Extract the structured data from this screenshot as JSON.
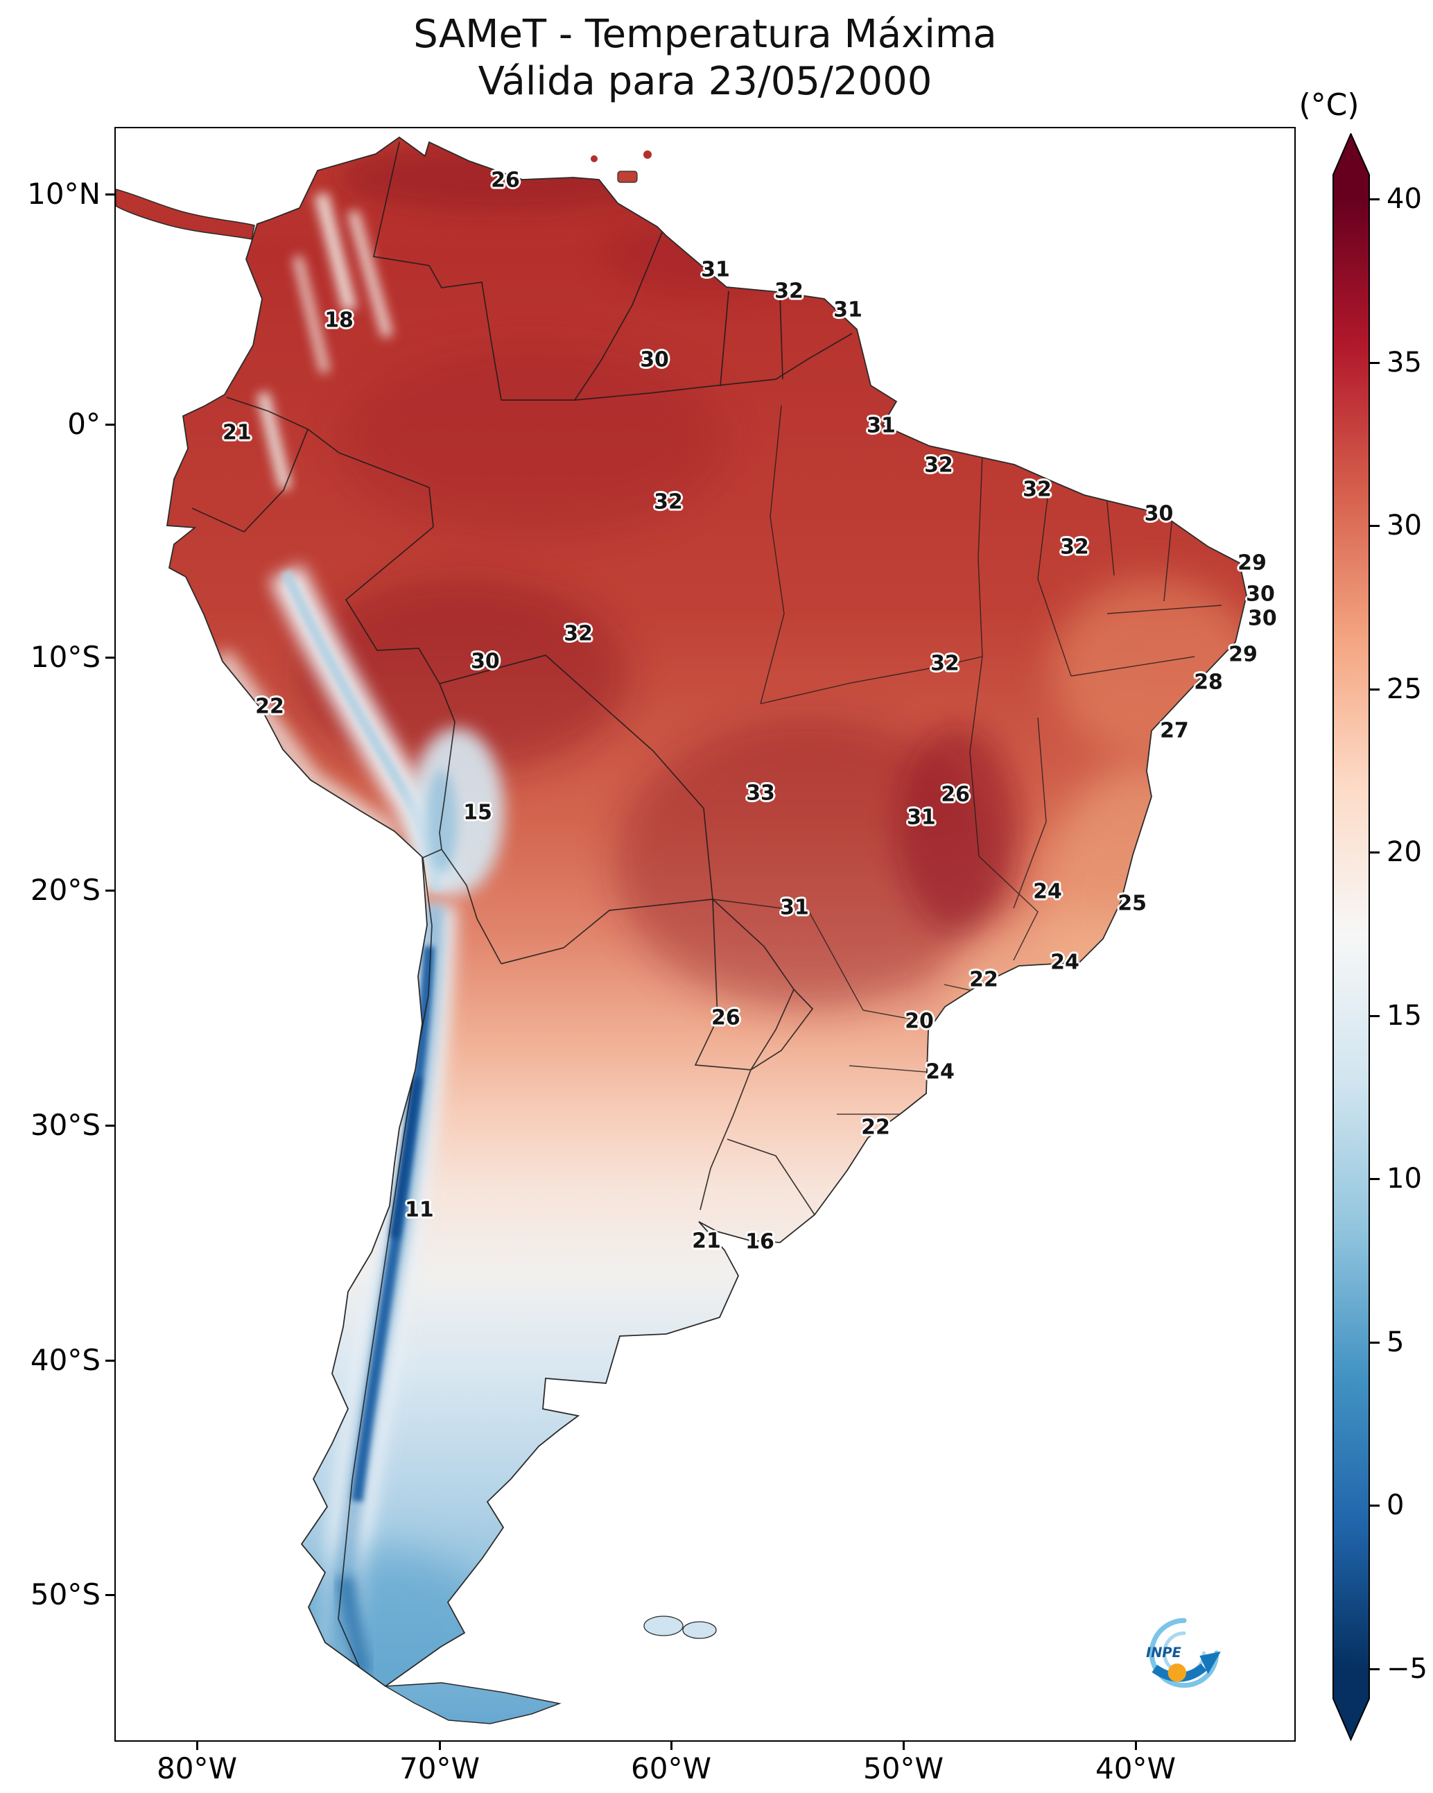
{
  "title": {
    "line1": "SAMeT - Temperatura Máxima",
    "line2": "Válida para 23/05/2000"
  },
  "colorbar": {
    "unit_label": "(°C)",
    "ticks": [
      40,
      35,
      30,
      25,
      20,
      15,
      10,
      5,
      0,
      -5
    ],
    "colormap_colors": [
      "#67001f",
      "#b2182b",
      "#d6604d",
      "#f4a582",
      "#fddbc7",
      "#f7f7f7",
      "#d1e5f0",
      "#92c5de",
      "#4393c3",
      "#2166ac",
      "#053061"
    ]
  },
  "axes": {
    "lat_ticks": [
      "10°N",
      "0°",
      "10°S",
      "20°S",
      "30°S",
      "40°S",
      "50°S"
    ],
    "lon_ticks": [
      "80°W",
      "70°W",
      "60°W",
      "50°W",
      "40°W"
    ]
  },
  "logo": {
    "text": "INPE"
  },
  "chart_data": {
    "type": "heatmap",
    "title": "SAMeT - Temperatura Máxima",
    "subtitle": "Válida para 23/05/2000",
    "variable": "Temperatura Máxima",
    "valid_date": "23/05/2000",
    "units": "°C",
    "region": "South America",
    "colormap": "RdBu_r (blue-white-red)",
    "colorbar_range": [
      -5,
      40
    ],
    "colorbar_ticks": [
      40,
      35,
      30,
      25,
      20,
      15,
      10,
      5,
      0,
      -5
    ],
    "x_axis_ticks": [
      "80°W",
      "70°W",
      "60°W",
      "50°W",
      "40°W"
    ],
    "y_axis_ticks": [
      "10°N",
      "0°",
      "10°S",
      "20°S",
      "30°S",
      "40°S",
      "50°S"
    ],
    "station_values": [
      {
        "value": 26,
        "x_pct": 33.06,
        "y_pct": 3.23
      },
      {
        "value": 31,
        "x_pct": 50.88,
        "y_pct": 8.77
      },
      {
        "value": 32,
        "x_pct": 57.12,
        "y_pct": 10.11
      },
      {
        "value": 31,
        "x_pct": 62.12,
        "y_pct": 11.27
      },
      {
        "value": 18,
        "x_pct": 18.94,
        "y_pct": 11.91
      },
      {
        "value": 30,
        "x_pct": 45.71,
        "y_pct": 14.37
      },
      {
        "value": 21,
        "x_pct": 10.29,
        "y_pct": 18.88
      },
      {
        "value": 31,
        "x_pct": 64.94,
        "y_pct": 18.45
      },
      {
        "value": 32,
        "x_pct": 69.82,
        "y_pct": 20.9
      },
      {
        "value": 32,
        "x_pct": 78.18,
        "y_pct": 22.41
      },
      {
        "value": 32,
        "x_pct": 46.88,
        "y_pct": 23.18
      },
      {
        "value": 30,
        "x_pct": 88.5,
        "y_pct": 23.91
      },
      {
        "value": 32,
        "x_pct": 81.35,
        "y_pct": 25.98
      },
      {
        "value": 29,
        "x_pct": 96.41,
        "y_pct": 26.97
      },
      {
        "value": 30,
        "x_pct": 97.12,
        "y_pct": 28.9
      },
      {
        "value": 30,
        "x_pct": 97.29,
        "y_pct": 30.41
      },
      {
        "value": 32,
        "x_pct": 39.24,
        "y_pct": 31.35
      },
      {
        "value": 30,
        "x_pct": 31.35,
        "y_pct": 33.08
      },
      {
        "value": 32,
        "x_pct": 70.35,
        "y_pct": 33.2
      },
      {
        "value": 29,
        "x_pct": 95.65,
        "y_pct": 32.65
      },
      {
        "value": 28,
        "x_pct": 92.71,
        "y_pct": 34.37
      },
      {
        "value": 22,
        "x_pct": 13.06,
        "y_pct": 35.87
      },
      {
        "value": 27,
        "x_pct": 89.82,
        "y_pct": 37.38
      },
      {
        "value": 15,
        "x_pct": 30.71,
        "y_pct": 42.45
      },
      {
        "value": 33,
        "x_pct": 54.71,
        "y_pct": 41.25
      },
      {
        "value": 26,
        "x_pct": 71.24,
        "y_pct": 41.33
      },
      {
        "value": 31,
        "x_pct": 68.35,
        "y_pct": 42.75
      },
      {
        "value": 24,
        "x_pct": 79.06,
        "y_pct": 47.35
      },
      {
        "value": 25,
        "x_pct": 86.24,
        "y_pct": 48.09
      },
      {
        "value": 31,
        "x_pct": 57.59,
        "y_pct": 48.34
      },
      {
        "value": 22,
        "x_pct": 73.65,
        "y_pct": 52.82
      },
      {
        "value": 24,
        "x_pct": 80.53,
        "y_pct": 51.74
      },
      {
        "value": 26,
        "x_pct": 51.76,
        "y_pct": 55.18
      },
      {
        "value": 20,
        "x_pct": 68.18,
        "y_pct": 55.4
      },
      {
        "value": 24,
        "x_pct": 69.94,
        "y_pct": 58.54
      },
      {
        "value": 22,
        "x_pct": 64.47,
        "y_pct": 61.98
      },
      {
        "value": 11,
        "x_pct": 25.76,
        "y_pct": 67.1
      },
      {
        "value": 21,
        "x_pct": 50.12,
        "y_pct": 69.03
      },
      {
        "value": 16,
        "x_pct": 54.65,
        "y_pct": 69.08
      }
    ]
  }
}
